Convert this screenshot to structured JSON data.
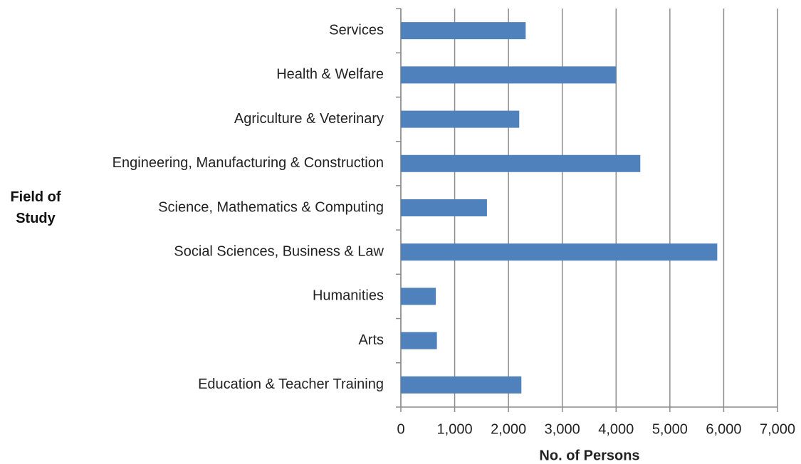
{
  "chart_data": {
    "type": "bar",
    "orientation": "horizontal",
    "categories": [
      "Services",
      "Health & Welfare",
      "Agriculture & Veterinary",
      "Engineering, Manufacturing & Construction",
      "Science, Mathematics & Computing",
      "Social Sciences, Business & Law",
      "Humanities",
      "Arts",
      "Education & Teacher Training"
    ],
    "values": [
      2320,
      4000,
      2200,
      4450,
      1600,
      5880,
      650,
      670,
      2240
    ],
    "color": "#4f81bd",
    "xlabel": "No. of Persons",
    "ylabel": "Field of Study",
    "xlim": [
      0,
      7000
    ],
    "xticks": [
      0,
      {
        "value": 1000,
        "label": "1,000"
      },
      {
        "value": 2000,
        "label": "2,000"
      },
      {
        "value": 3000,
        "label": "3,000"
      },
      {
        "value": 4000,
        "label": "4,000"
      },
      {
        "value": 5000,
        "label": "5,000"
      },
      {
        "value": 6000,
        "label": "6,000"
      },
      {
        "value": 7000,
        "label": "7,000"
      }
    ],
    "grid": true
  }
}
